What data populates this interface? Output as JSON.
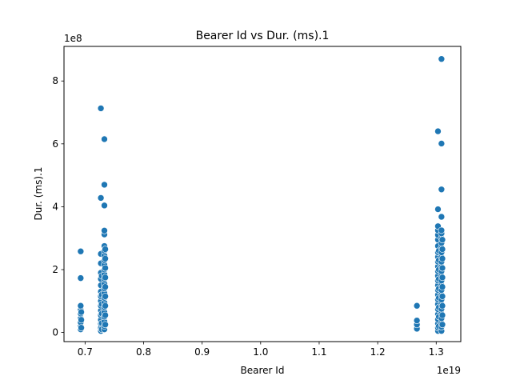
{
  "chart_data": {
    "type": "scatter",
    "title": "Bearer Id vs Dur. (ms).1",
    "xlabel": "Bearer Id",
    "ylabel": "Dur. (ms).1",
    "x_offset_label": "1e19",
    "y_offset_label": "1e8",
    "xlim": [
      0.664,
      1.342
    ],
    "ylim": [
      -0.29,
      9.1
    ],
    "xticks": [
      0.7,
      0.8,
      0.9,
      1.0,
      1.1,
      1.2,
      1.3
    ],
    "xtick_labels": [
      "0.7",
      "0.8",
      "0.9",
      "1.0",
      "1.1",
      "1.2",
      "1.3"
    ],
    "yticks": [
      0,
      2,
      4,
      6,
      8
    ],
    "ytick_labels": [
      "0",
      "2",
      "4",
      "6",
      "8"
    ],
    "grid": false,
    "point_color": "#1f77b4",
    "edge_color": "#ffffff",
    "points": [
      [
        0.6925,
        0.1
      ],
      [
        0.6925,
        0.2
      ],
      [
        0.6925,
        0.32
      ],
      [
        0.6925,
        0.45
      ],
      [
        0.6925,
        0.6
      ],
      [
        0.6925,
        0.72
      ],
      [
        0.6925,
        0.85
      ],
      [
        0.6925,
        1.73
      ],
      [
        0.6925,
        2.58
      ],
      [
        0.6935,
        0.15
      ],
      [
        0.6935,
        0.4
      ],
      [
        0.6935,
        0.65
      ],
      [
        0.727,
        0.05
      ],
      [
        0.727,
        0.15
      ],
      [
        0.727,
        0.28
      ],
      [
        0.727,
        0.4
      ],
      [
        0.727,
        0.55
      ],
      [
        0.727,
        0.7
      ],
      [
        0.727,
        0.85
      ],
      [
        0.727,
        1.0
      ],
      [
        0.727,
        1.15
      ],
      [
        0.727,
        1.3
      ],
      [
        0.727,
        1.5
      ],
      [
        0.727,
        1.7
      ],
      [
        0.727,
        1.9
      ],
      [
        0.727,
        2.2
      ],
      [
        0.727,
        2.5
      ],
      [
        0.727,
        4.28
      ],
      [
        0.727,
        7.13
      ],
      [
        0.7285,
        0.1
      ],
      [
        0.7285,
        0.3
      ],
      [
        0.7285,
        0.6
      ],
      [
        0.7285,
        0.9
      ],
      [
        0.7285,
        1.2
      ],
      [
        0.7285,
        1.8
      ],
      [
        0.733,
        0.1
      ],
      [
        0.733,
        0.2
      ],
      [
        0.733,
        0.35
      ],
      [
        0.733,
        0.5
      ],
      [
        0.733,
        0.65
      ],
      [
        0.733,
        0.8
      ],
      [
        0.733,
        0.95
      ],
      [
        0.733,
        1.1
      ],
      [
        0.733,
        1.25
      ],
      [
        0.733,
        1.4
      ],
      [
        0.733,
        1.55
      ],
      [
        0.733,
        1.7
      ],
      [
        0.733,
        1.85
      ],
      [
        0.733,
        2.0
      ],
      [
        0.733,
        2.15
      ],
      [
        0.733,
        2.3
      ],
      [
        0.733,
        2.45
      ],
      [
        0.733,
        2.6
      ],
      [
        0.733,
        2.75
      ],
      [
        0.733,
        3.12
      ],
      [
        0.733,
        3.24
      ],
      [
        0.733,
        4.04
      ],
      [
        0.733,
        4.7
      ],
      [
        0.733,
        6.15
      ],
      [
        0.7345,
        0.25
      ],
      [
        0.7345,
        0.55
      ],
      [
        0.7345,
        0.85
      ],
      [
        0.7345,
        1.15
      ],
      [
        0.7345,
        1.45
      ],
      [
        0.7345,
        1.75
      ],
      [
        0.7345,
        2.05
      ],
      [
        0.7345,
        2.35
      ],
      [
        0.7345,
        2.65
      ],
      [
        1.267,
        0.12
      ],
      [
        1.267,
        0.25
      ],
      [
        1.267,
        0.38
      ],
      [
        1.267,
        0.85
      ],
      [
        1.303,
        0.05
      ],
      [
        1.303,
        0.15
      ],
      [
        1.303,
        0.28
      ],
      [
        1.303,
        0.42
      ],
      [
        1.303,
        0.58
      ],
      [
        1.303,
        0.74
      ],
      [
        1.303,
        0.9
      ],
      [
        1.303,
        1.05
      ],
      [
        1.303,
        1.2
      ],
      [
        1.303,
        1.35
      ],
      [
        1.303,
        1.5
      ],
      [
        1.303,
        1.65
      ],
      [
        1.303,
        1.8
      ],
      [
        1.303,
        1.95
      ],
      [
        1.303,
        2.1
      ],
      [
        1.303,
        2.25
      ],
      [
        1.303,
        2.4
      ],
      [
        1.303,
        2.55
      ],
      [
        1.303,
        2.75
      ],
      [
        1.303,
        2.95
      ],
      [
        1.303,
        3.1
      ],
      [
        1.303,
        3.25
      ],
      [
        1.303,
        3.38
      ],
      [
        1.303,
        3.92
      ],
      [
        1.303,
        6.4
      ],
      [
        1.3045,
        0.2
      ],
      [
        1.3045,
        0.5
      ],
      [
        1.3045,
        0.8
      ],
      [
        1.3045,
        1.1
      ],
      [
        1.3045,
        1.4
      ],
      [
        1.3045,
        1.7
      ],
      [
        1.3045,
        2.0
      ],
      [
        1.3045,
        2.3
      ],
      [
        1.3045,
        2.6
      ],
      [
        1.309,
        0.05
      ],
      [
        1.309,
        0.18
      ],
      [
        1.309,
        0.3
      ],
      [
        1.309,
        0.45
      ],
      [
        1.309,
        0.6
      ],
      [
        1.309,
        0.75
      ],
      [
        1.309,
        0.9
      ],
      [
        1.309,
        1.05
      ],
      [
        1.309,
        1.2
      ],
      [
        1.309,
        1.35
      ],
      [
        1.309,
        1.5
      ],
      [
        1.309,
        1.65
      ],
      [
        1.309,
        1.8
      ],
      [
        1.309,
        1.95
      ],
      [
        1.309,
        2.1
      ],
      [
        1.309,
        2.25
      ],
      [
        1.309,
        2.4
      ],
      [
        1.309,
        2.55
      ],
      [
        1.309,
        2.7
      ],
      [
        1.309,
        2.85
      ],
      [
        1.309,
        3.0
      ],
      [
        1.309,
        3.15
      ],
      [
        1.309,
        3.25
      ],
      [
        1.309,
        3.68
      ],
      [
        1.309,
        4.55
      ],
      [
        1.309,
        6.01
      ],
      [
        1.309,
        8.7
      ],
      [
        1.3105,
        0.25
      ],
      [
        1.3105,
        0.55
      ],
      [
        1.3105,
        0.85
      ],
      [
        1.3105,
        1.15
      ],
      [
        1.3105,
        1.45
      ],
      [
        1.3105,
        1.75
      ],
      [
        1.3105,
        2.05
      ],
      [
        1.3105,
        2.35
      ],
      [
        1.3105,
        2.65
      ],
      [
        1.3105,
        2.95
      ]
    ]
  }
}
